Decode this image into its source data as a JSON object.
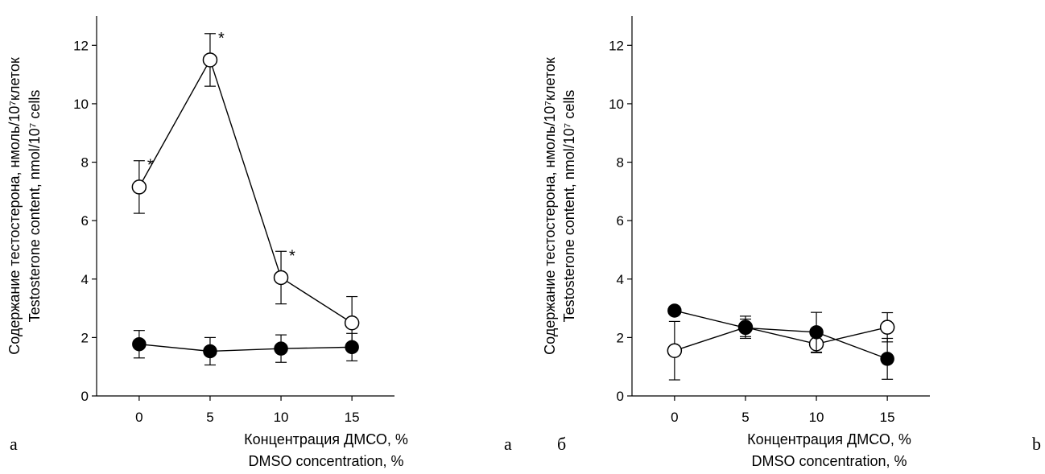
{
  "chart_data": [
    {
      "type": "line",
      "panel_letters": [
        "а",
        "a"
      ],
      "xlabel": [
        "Концентрация ДМСО, %",
        "DMSO concentration, %"
      ],
      "ylabel": [
        "Содержание тестостерона, нмоль/10⁷клеток",
        "Testosterone content, nmol/10⁷ cells"
      ],
      "x": [
        0,
        5,
        10,
        15
      ],
      "x_ticks": [
        "0",
        "5",
        "10",
        "15"
      ],
      "y_ticks": [
        "0",
        "2",
        "4",
        "6",
        "8",
        "10",
        "12"
      ],
      "xlim": [
        -3,
        18
      ],
      "ylim": [
        0,
        13
      ],
      "grid": false,
      "series": [
        {
          "marker": "open-circle",
          "values": [
            7.15,
            11.5,
            4.05,
            2.5
          ],
          "errors": [
            0.9,
            0.9,
            0.9,
            0.9
          ],
          "significance": [
            "*",
            "*",
            "*",
            ""
          ]
        },
        {
          "marker": "filled-circle",
          "values": [
            1.77,
            1.53,
            1.62,
            1.67
          ],
          "errors": [
            0.47,
            0.47,
            0.47,
            0.47
          ],
          "significance": [
            "",
            "",
            "",
            ""
          ]
        }
      ]
    },
    {
      "type": "line",
      "panel_letters": [
        "б",
        "b"
      ],
      "xlabel": [
        "Концентрация ДМСО, %",
        "DMSO concentration, %"
      ],
      "ylabel": [
        "Содержание тестостерона, нмоль/10⁷клеток",
        "Testosterone content, nmol/10⁷ cells"
      ],
      "x": [
        0,
        5,
        10,
        15
      ],
      "x_ticks": [
        "0",
        "5",
        "10",
        "15"
      ],
      "y_ticks": [
        "0",
        "2",
        "4",
        "6",
        "8",
        "10",
        "12"
      ],
      "xlim": [
        -3,
        18
      ],
      "ylim": [
        0,
        13
      ],
      "grid": false,
      "series": [
        {
          "marker": "open-circle",
          "values": [
            1.55,
            2.35,
            1.78,
            2.35
          ],
          "errors": [
            1.0,
            0.38,
            0.3,
            0.5
          ],
          "significance": [
            "",
            "",
            "",
            ""
          ]
        },
        {
          "marker": "filled-circle",
          "values": [
            2.92,
            2.33,
            2.18,
            1.27
          ],
          "errors": [
            0.0,
            0.3,
            0.68,
            0.7
          ],
          "significance": [
            "",
            "",
            "",
            ""
          ]
        }
      ]
    }
  ]
}
